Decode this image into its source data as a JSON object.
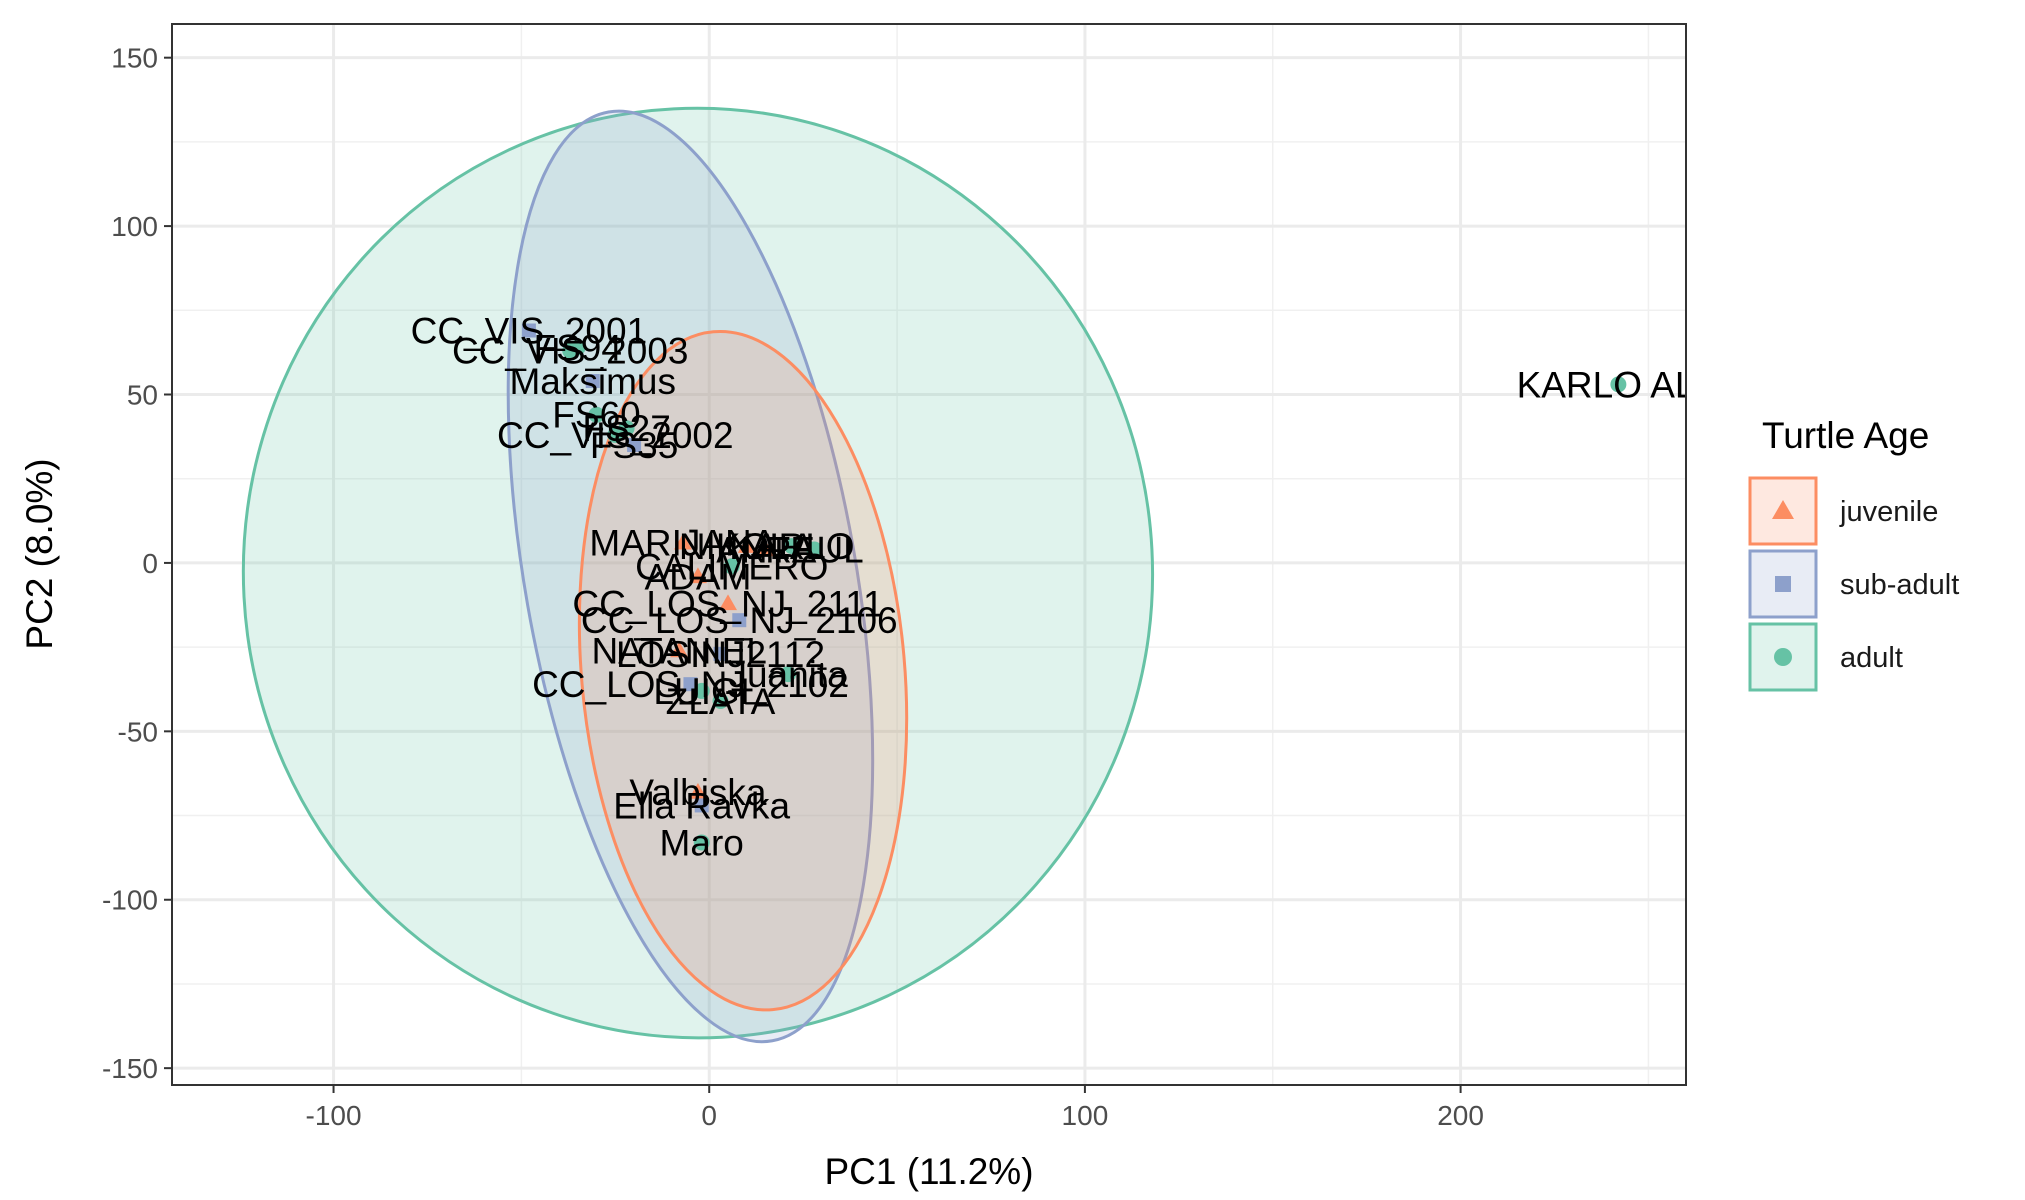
{
  "chart_data": {
    "type": "scatter",
    "xlabel": "PC1 (11.2%)",
    "ylabel": "PC2 (8.0%)",
    "xlim": [
      -143,
      260
    ],
    "ylim": [
      -155,
      160
    ],
    "x_ticks": [
      -100,
      0,
      100,
      200
    ],
    "y_ticks": [
      -150,
      -100,
      -50,
      0,
      50,
      100,
      150
    ],
    "x_tick_labels": [
      "-100",
      "0",
      "100",
      "200"
    ],
    "y_tick_labels": [
      "-150",
      "-100",
      "-50",
      "0",
      "50",
      "100",
      "150"
    ],
    "grid": true,
    "legend": {
      "title": "Turtle Age",
      "position": "right",
      "entries": [
        {
          "label": "juvenile",
          "shape": "triangle",
          "color": "#FC8D62"
        },
        {
          "label": "sub-adult",
          "shape": "square",
          "color": "#8DA0CB"
        },
        {
          "label": "adult",
          "shape": "circle",
          "color": "#66C2A5"
        }
      ]
    },
    "series": [
      {
        "name": "juvenile",
        "color": "#FC8D62",
        "shape": "triangle",
        "ellipse": {
          "cx": 9,
          "cy": -32,
          "rx": 43,
          "ry": 101,
          "rotation_deg": -5
        },
        "points": [
          {
            "label": "MARIJANA",
            "x": -7,
            "y": 6
          },
          {
            "label": "NIKOLA",
            "x": 10,
            "y": 5
          },
          {
            "label": "ANTE",
            "x": 15,
            "y": 4
          },
          {
            "label": "ADAM",
            "x": -3,
            "y": -4
          },
          {
            "label": "CC_LOS_NJ_2111",
            "x": 5,
            "y": -12
          },
          {
            "label": "NATANIEL",
            "x": -8,
            "y": -26
          },
          {
            "label": "Valbiska",
            "x": -3,
            "y": -68
          }
        ]
      },
      {
        "name": "sub-adult",
        "color": "#8DA0CB",
        "shape": "square",
        "ellipse": {
          "cx": -5,
          "cy": -4,
          "rx": 44,
          "ry": 140,
          "rotation_deg": -10
        },
        "points": [
          {
            "label": "CC_VIS_2001",
            "x": -48,
            "y": 69
          },
          {
            "label": "Maksimus",
            "x": -31,
            "y": 54
          },
          {
            "label": "FS35",
            "x": -20,
            "y": 35
          },
          {
            "label": "CC_LOS_NJ_2106",
            "x": 8,
            "y": -17
          },
          {
            "label": "LOSINJ2112",
            "x": 3,
            "y": -27
          },
          {
            "label": "CC_LOS_NJ_2102",
            "x": -5,
            "y": -36
          },
          {
            "label": "Ella Ravka",
            "x": -2,
            "y": -72
          }
        ]
      },
      {
        "name": "adult",
        "color": "#66C2A5",
        "shape": "circle",
        "ellipse": {
          "cx": -3,
          "cy": -3,
          "rx": 121,
          "ry": 138,
          "rotation_deg": -3
        },
        "points": [
          {
            "label": "CC_VIS_2003",
            "x": -37,
            "y": 63
          },
          {
            "label": "FS94",
            "x": -35,
            "y": 64
          },
          {
            "label": "FS60",
            "x": -30,
            "y": 44
          },
          {
            "label": "CC_VIS_2002",
            "x": -25,
            "y": 38
          },
          {
            "label": "FS27",
            "x": -22,
            "y": 40
          },
          {
            "label": "KARLO",
            "x": 22,
            "y": 5
          },
          {
            "label": "RAUL",
            "x": 28,
            "y": 4
          },
          {
            "label": "CALIMERO",
            "x": 6,
            "y": -1
          },
          {
            "label": "Juanita",
            "x": 21,
            "y": -33
          },
          {
            "label": "LUIGI",
            "x": -2,
            "y": -38
          },
          {
            "label": "ZLATA",
            "x": 3,
            "y": -41
          },
          {
            "label": "Maro",
            "x": -2,
            "y": -83
          },
          {
            "label": "KARLO ALB",
            "x": 242,
            "y": 53
          }
        ]
      }
    ]
  }
}
